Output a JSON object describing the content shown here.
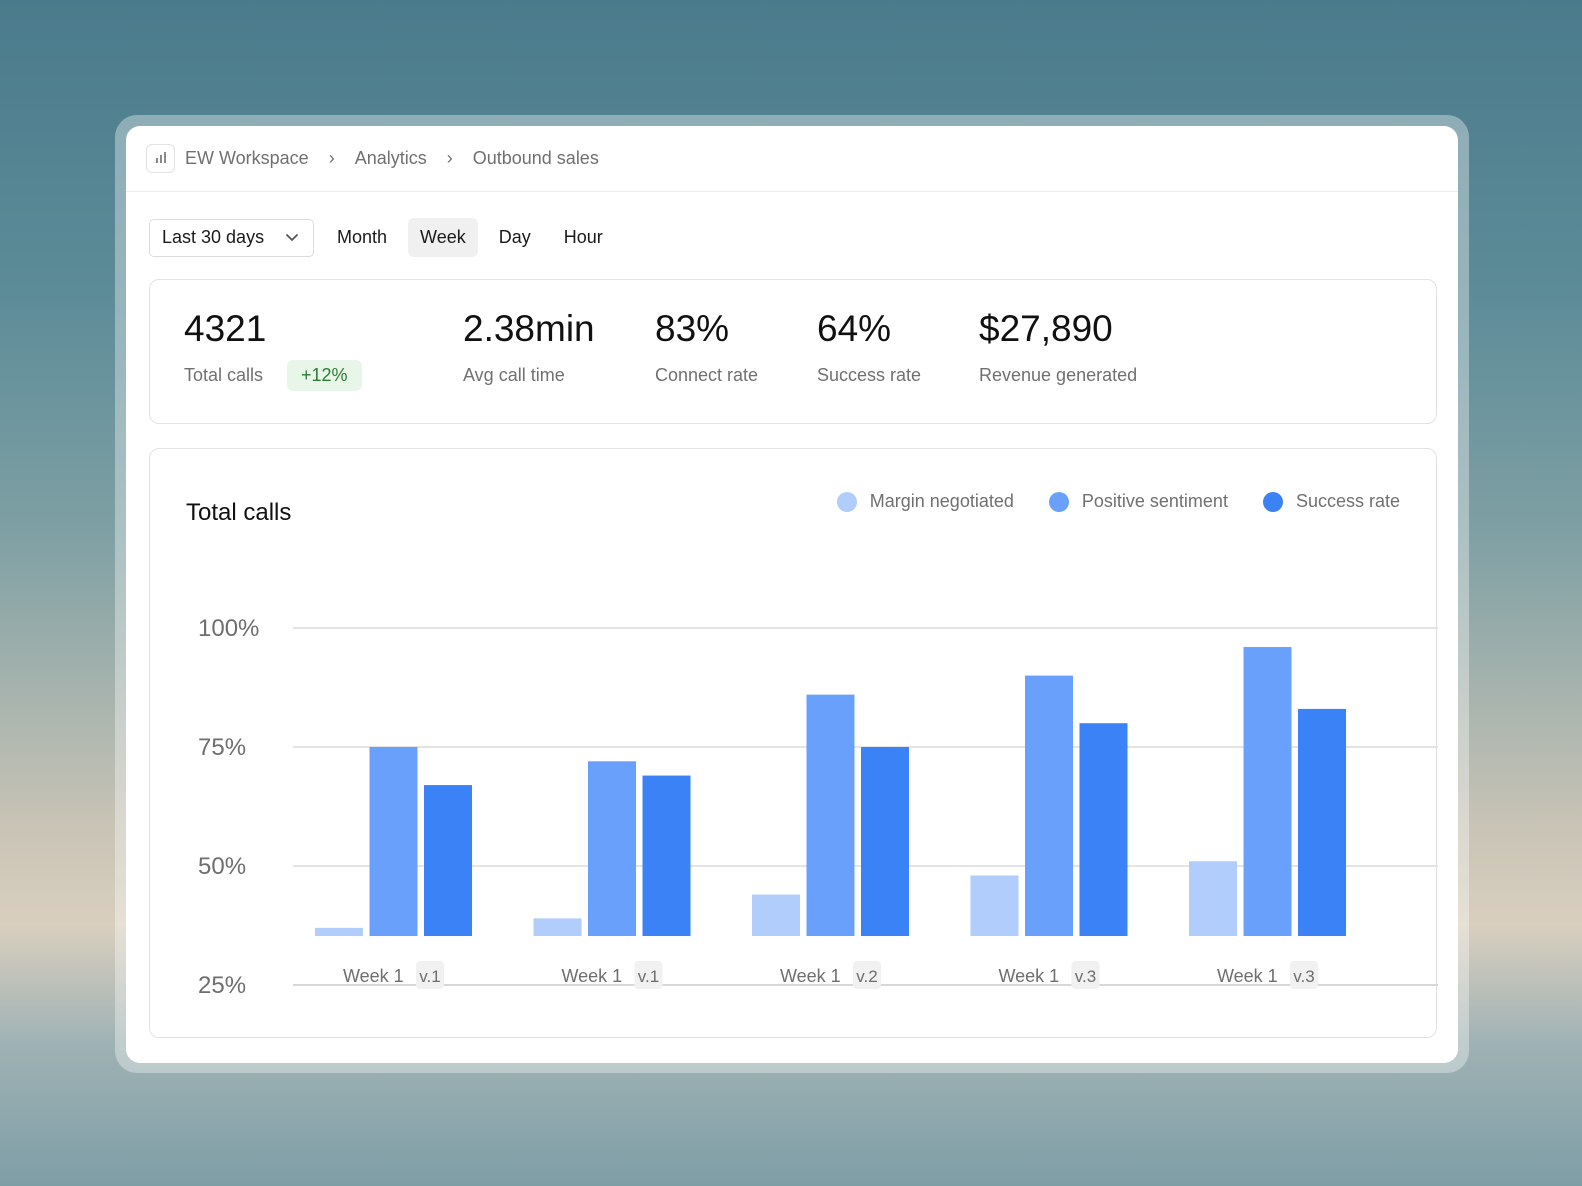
{
  "breadcrumb": {
    "items": [
      {
        "label": "EW Workspace"
      },
      {
        "label": "Analytics"
      },
      {
        "label": "Outbound sales"
      }
    ]
  },
  "icons": {
    "app": "bar-chart-icon",
    "separator": "chevron-right-icon",
    "dropdown": "chevron-down-icon"
  },
  "filters": {
    "range_label": "Last 30 days",
    "granularity": [
      "Month",
      "Week",
      "Day",
      "Hour"
    ],
    "active": "Week"
  },
  "stats": {
    "total_calls": {
      "value": "4321",
      "label": "Total calls",
      "badge": "+12%"
    },
    "avg_call_time": {
      "value": "2.38min",
      "label": "Avg call time"
    },
    "connect_rate": {
      "value": "83%",
      "label": "Connect rate"
    },
    "success_rate": {
      "value": "64%",
      "label": "Success rate"
    },
    "revenue": {
      "value": "$27,890",
      "label": "Revenue generated"
    }
  },
  "colors": {
    "margin": "#b1cdfb",
    "sentiment": "#69a0fb",
    "success": "#3b82f6",
    "badge_bg": "#e8f6ea",
    "badge_text": "#2e7d32"
  },
  "chart_data": {
    "type": "bar",
    "title": "Total calls",
    "categories": [
      "Week 1",
      "Week 1",
      "Week 1",
      "Week 1",
      "Week 1"
    ],
    "category_tags": [
      "v.1",
      "v.1",
      "v.2",
      "v.3",
      "v.3"
    ],
    "series": [
      {
        "name": "Margin negotiated",
        "values": [
          37,
          39,
          44,
          48,
          51
        ]
      },
      {
        "name": "Positive sentiment",
        "values": [
          75,
          72,
          86,
          90,
          96
        ]
      },
      {
        "name": "Success rate",
        "values": [
          67,
          69,
          75,
          80,
          83
        ]
      }
    ],
    "y_ticks": [
      "100%",
      "75%",
      "50%",
      "25%"
    ],
    "ylim": [
      25,
      100
    ],
    "grid": true,
    "legend_position": "top-right"
  }
}
